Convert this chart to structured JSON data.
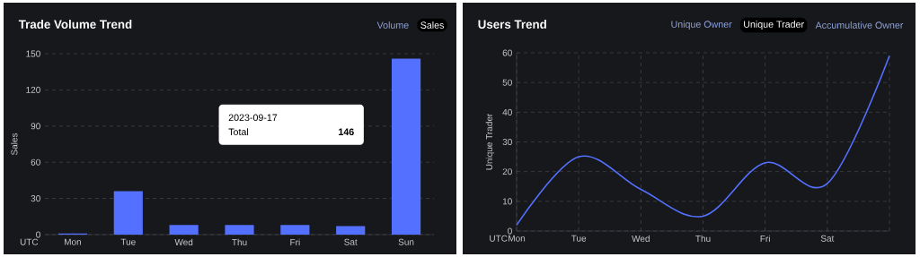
{
  "chart_data": [
    {
      "type": "bar",
      "title": "Trade Volume Trend",
      "ylabel": "Sales",
      "xlabel": "UTC",
      "categories": [
        "Mon",
        "Tue",
        "Wed",
        "Thu",
        "Fri",
        "Sat",
        "Sun"
      ],
      "values": [
        1,
        36,
        8,
        8,
        8,
        7,
        146
      ],
      "color": "#5470ff",
      "ylim": [
        0,
        150
      ],
      "yticks": [
        0,
        30,
        60,
        90,
        120,
        150
      ],
      "grid": "y",
      "annotations": [
        "Volume",
        "Sales",
        "2023-09-17",
        "Total",
        "146"
      ]
    },
    {
      "type": "line",
      "title": "Users Trend",
      "ylabel": "Unique Trader",
      "xlabel": "UTC",
      "categories": [
        "Mon",
        "Tue",
        "Wed",
        "Thu",
        "Fri",
        "Sat",
        null
      ],
      "values": [
        2,
        25,
        14,
        5,
        23,
        16,
        59
      ],
      "color": "#5470ff",
      "ylim": [
        0,
        60
      ],
      "yticks": [
        0,
        10,
        20,
        30,
        40,
        50,
        60
      ],
      "grid": true,
      "annotations": [
        "Unique Owner",
        "Unique Trader",
        "Accumulative Owner"
      ]
    }
  ]
}
